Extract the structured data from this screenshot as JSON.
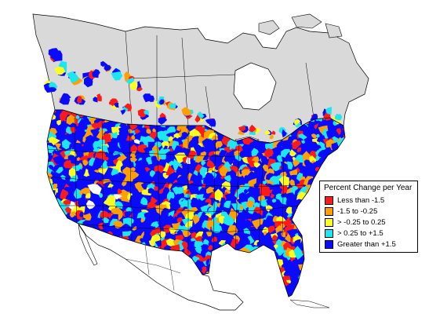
{
  "legend": {
    "title": "Percent Change per Year",
    "items": [
      {
        "label": "Less than -1.5",
        "color": "#ff1a1a"
      },
      {
        "label": "-1.5 to -0.25",
        "color": "#ffa000"
      },
      {
        "label": "> -0.25 to 0.25",
        "color": "#ffff1e"
      },
      {
        "label": "> 0.25 to +1.5",
        "color": "#1ee6f0"
      },
      {
        "label": "Greater than +1.5",
        "color": "#0a0aff"
      }
    ]
  },
  "colors": {
    "no_data_land": "#d9d9d9",
    "outline": "#000000",
    "background": "#ffffff"
  }
}
